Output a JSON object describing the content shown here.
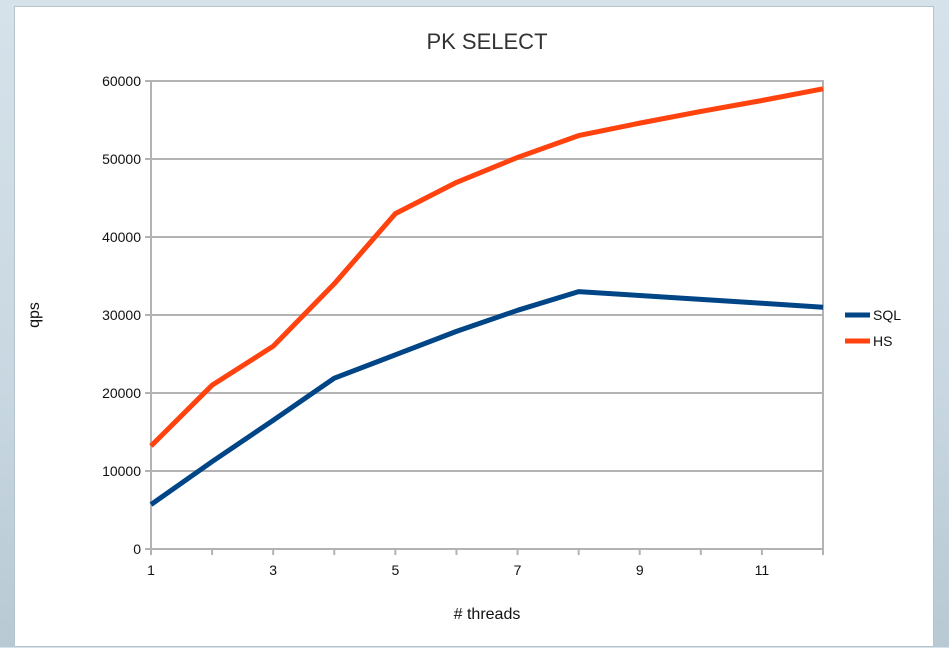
{
  "chart_data": {
    "type": "line",
    "title": "PK SELECT",
    "xlabel": "# threads",
    "ylabel": "qps",
    "x": [
      1,
      2,
      3,
      4,
      5,
      6,
      7,
      8,
      9,
      10,
      11,
      12
    ],
    "xlim": [
      1,
      12
    ],
    "x_tick_labels": [
      "1",
      "3",
      "5",
      "7",
      "9",
      "11"
    ],
    "ylim": [
      0,
      60000
    ],
    "y_tick_labels": [
      "0",
      "10000",
      "20000",
      "30000",
      "40000",
      "50000",
      "60000"
    ],
    "grid": true,
    "legend_position": "right",
    "series": [
      {
        "name": "SQL",
        "color": "#004586",
        "values": [
          5700,
          11200,
          16500,
          21900,
          24900,
          27900,
          30600,
          33000,
          32500,
          32000,
          31500,
          31000
        ]
      },
      {
        "name": "HS",
        "color": "#ff420e",
        "values": [
          13200,
          21000,
          26000,
          34000,
          43000,
          47000,
          50200,
          53000,
          54600,
          56100,
          57500,
          59000
        ]
      }
    ]
  }
}
